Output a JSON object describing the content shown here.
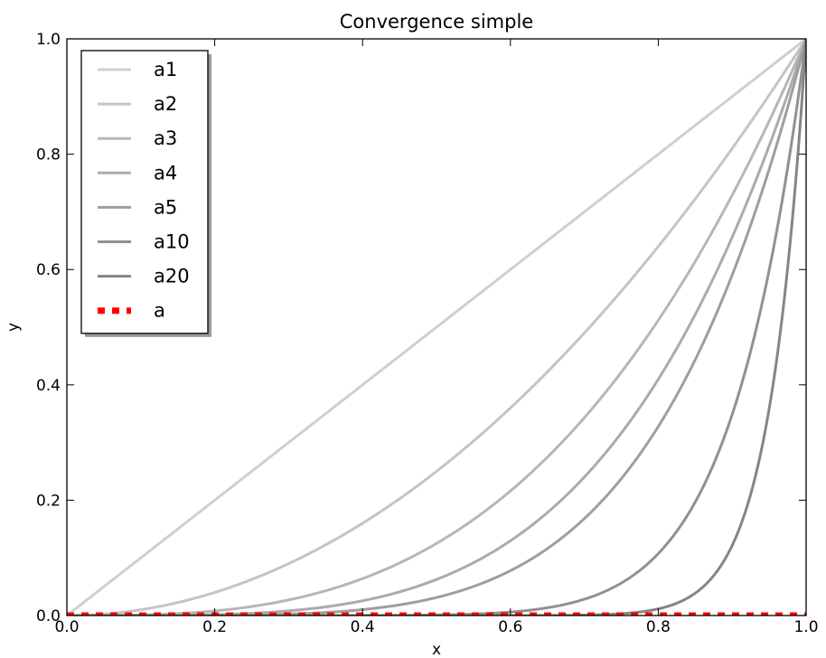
{
  "chart_data": {
    "type": "line",
    "title": "Convergence simple",
    "xlabel": "x",
    "ylabel": "y",
    "xlim": [
      0.0,
      1.0
    ],
    "ylim": [
      0.0,
      1.0
    ],
    "grid": false,
    "legend_placement": "top-left",
    "x_ticks": [
      "0.0",
      "0.2",
      "0.4",
      "0.6",
      "0.8",
      "1.0"
    ],
    "y_ticks": [
      "0.0",
      "0.2",
      "0.4",
      "0.6",
      "0.8",
      "1.0"
    ],
    "series": [
      {
        "name": "a1",
        "exponent": 1,
        "color": "#cfcfcf",
        "style": "solid"
      },
      {
        "name": "a2",
        "exponent": 2,
        "color": "#c4c4c4",
        "style": "solid"
      },
      {
        "name": "a3",
        "exponent": 3,
        "color": "#b6b6b6",
        "style": "solid"
      },
      {
        "name": "a4",
        "exponent": 4,
        "color": "#ababab",
        "style": "solid"
      },
      {
        "name": "a5",
        "exponent": 5,
        "color": "#9e9e9e",
        "style": "solid"
      },
      {
        "name": "a10",
        "exponent": 10,
        "color": "#919191",
        "style": "solid"
      },
      {
        "name": "a20",
        "exponent": 20,
        "color": "#858585",
        "style": "solid"
      },
      {
        "name": "a",
        "constant": 0,
        "color": "#ff0000",
        "style": "dotted"
      }
    ]
  }
}
